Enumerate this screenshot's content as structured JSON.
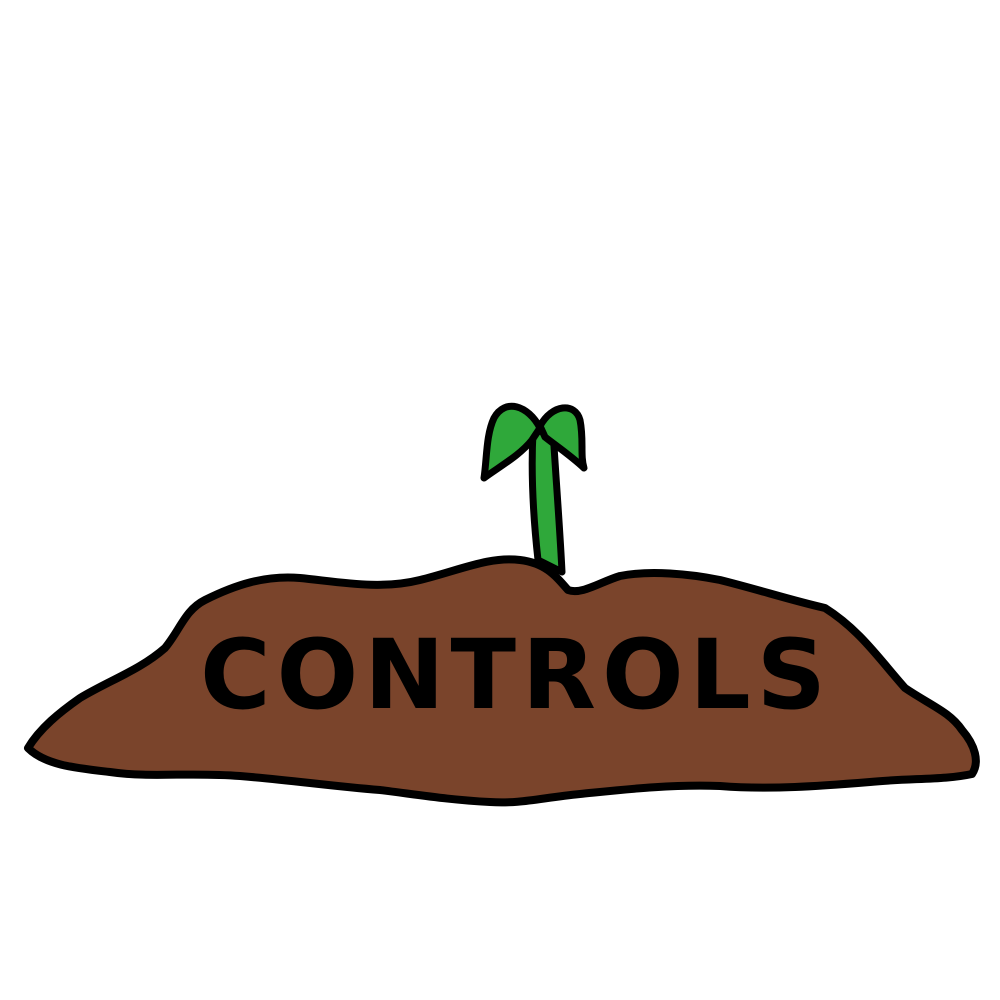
{
  "menu": {
    "title_label": "CONTROLS"
  },
  "colors": {
    "background": "#ffffff",
    "dirt": "#7a442b",
    "outline": "#000000",
    "sprout_green": "#2fa83a",
    "sprout_dark": "#1e7a28"
  },
  "icons": {
    "sprout": "sprout-icon",
    "dirt_mound": "dirt-mound"
  }
}
